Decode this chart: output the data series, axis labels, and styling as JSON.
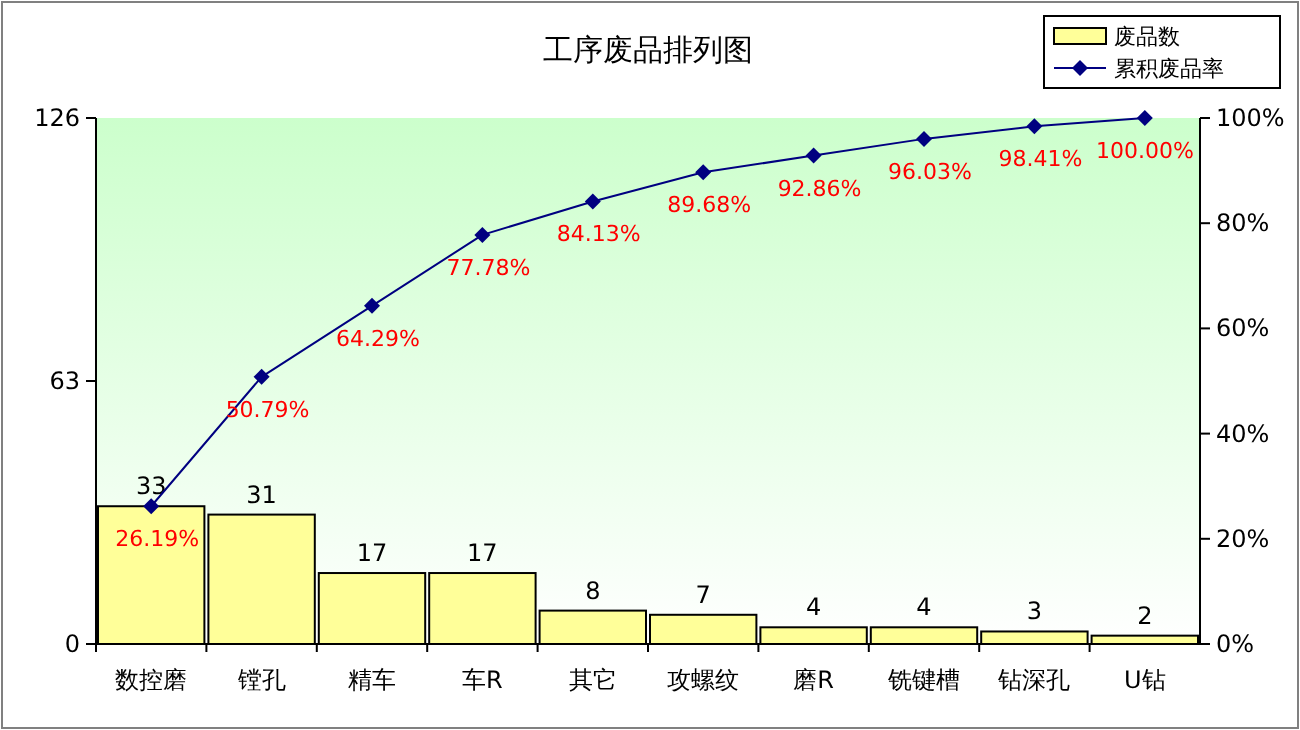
{
  "chart_data": {
    "type": "bar",
    "title": "工序废品排列图",
    "categories": [
      "数控磨",
      "镗孔",
      "精车",
      "车R",
      "其它",
      "攻螺纹",
      "磨R",
      "铣键槽",
      "钻深孔",
      "U钻"
    ],
    "series": [
      {
        "name": "废品数",
        "color": "#ffff99",
        "values": [
          33,
          31,
          17,
          17,
          8,
          7,
          4,
          4,
          3,
          2
        ],
        "value_labels": [
          "33",
          "31",
          "17",
          "17",
          "8",
          "7",
          "4",
          "4",
          "3",
          "2"
        ]
      },
      {
        "name": "累积废品率",
        "type": "line",
        "axis": "y2",
        "color": "#000080",
        "marker": "diamond",
        "values": [
          26.19,
          50.79,
          64.29,
          77.78,
          84.13,
          89.68,
          92.86,
          96.03,
          98.41,
          100.0
        ],
        "value_labels": [
          "26.19%",
          "50.79%",
          "64.29%",
          "77.78%",
          "84.13%",
          "89.68%",
          "92.86%",
          "96.03%",
          "98.41%",
          "100.00%"
        ]
      }
    ],
    "ylim": [
      0,
      126
    ],
    "yticks": [
      0,
      63,
      126
    ],
    "y2lim": [
      0,
      100
    ],
    "y2ticks": [
      {
        "value": 0,
        "label": "0%"
      },
      {
        "value": 20,
        "label": "20%"
      },
      {
        "value": 40,
        "label": "40%"
      },
      {
        "value": 60,
        "label": "60%"
      },
      {
        "value": 80,
        "label": "80%"
      },
      {
        "value": 100,
        "label": "100%"
      }
    ],
    "grid": false,
    "legend": "top right"
  }
}
